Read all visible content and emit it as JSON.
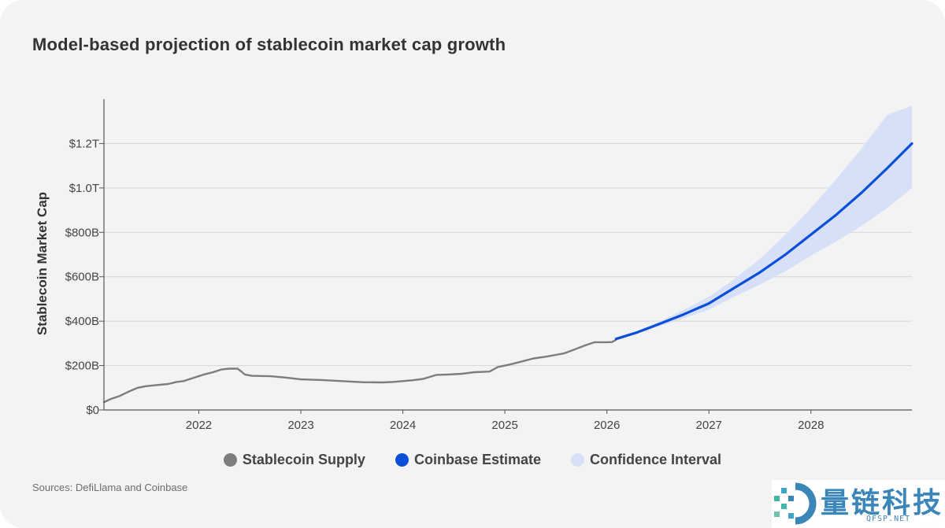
{
  "title": "Model-based projection of stablecoin market cap growth",
  "sources": "Sources: DefiLlama and Coinbase",
  "watermark": {
    "text": "量链科技",
    "sub": "QFSP.NET"
  },
  "colors": {
    "supply": "#7d7d7d",
    "estimate": "#0b4fd9",
    "confidence": "#d7e0f7",
    "grid": "#d6d6d6",
    "axis": "#555555"
  },
  "chart_data": {
    "type": "line",
    "title": "Model-based projection of stablecoin market cap growth",
    "ylabel": "Stablecoin Market Cap",
    "xlabel": "",
    "xlim": [
      2021.07,
      2028.99
    ],
    "ylim": [
      0,
      1400
    ],
    "y_ticks": [
      {
        "value": 0,
        "label": "$0"
      },
      {
        "value": 200,
        "label": "$200B"
      },
      {
        "value": 400,
        "label": "$400B"
      },
      {
        "value": 600,
        "label": "$600B"
      },
      {
        "value": 800,
        "label": "$800B"
      },
      {
        "value": 1000,
        "label": "$1.0T"
      },
      {
        "value": 1200,
        "label": "$1.2T"
      }
    ],
    "x_ticks": [
      {
        "value": 2022,
        "label": "2022"
      },
      {
        "value": 2023,
        "label": "2023"
      },
      {
        "value": 2024,
        "label": "2024"
      },
      {
        "value": 2025,
        "label": "2025"
      },
      {
        "value": 2026,
        "label": "2026"
      },
      {
        "value": 2027,
        "label": "2027"
      },
      {
        "value": 2028,
        "label": "2028"
      }
    ],
    "grid": true,
    "legend": "bottom",
    "series": [
      {
        "name": "Stablecoin Supply",
        "points": [
          [
            2021.07,
            35
          ],
          [
            2021.14,
            50
          ],
          [
            2021.22,
            62
          ],
          [
            2021.3,
            80
          ],
          [
            2021.4,
            100
          ],
          [
            2021.48,
            107
          ],
          [
            2021.58,
            112
          ],
          [
            2021.7,
            117
          ],
          [
            2021.78,
            126
          ],
          [
            2021.85,
            130
          ],
          [
            2021.95,
            145
          ],
          [
            2022.05,
            160
          ],
          [
            2022.14,
            170
          ],
          [
            2022.22,
            182
          ],
          [
            2022.3,
            186
          ],
          [
            2022.38,
            186
          ],
          [
            2022.42,
            172
          ],
          [
            2022.45,
            160
          ],
          [
            2022.52,
            154
          ],
          [
            2022.6,
            153
          ],
          [
            2022.7,
            152
          ],
          [
            2022.85,
            146
          ],
          [
            2023.0,
            138
          ],
          [
            2023.2,
            135
          ],
          [
            2023.4,
            130
          ],
          [
            2023.6,
            125
          ],
          [
            2023.8,
            124
          ],
          [
            2023.9,
            126
          ],
          [
            2024.0,
            130
          ],
          [
            2024.1,
            134
          ],
          [
            2024.2,
            140
          ],
          [
            2024.33,
            158
          ],
          [
            2024.45,
            160
          ],
          [
            2024.58,
            163
          ],
          [
            2024.7,
            170
          ],
          [
            2024.85,
            173
          ],
          [
            2024.93,
            193
          ],
          [
            2025.05,
            205
          ],
          [
            2025.18,
            220
          ],
          [
            2025.28,
            232
          ],
          [
            2025.4,
            240
          ],
          [
            2025.5,
            248
          ],
          [
            2025.58,
            255
          ],
          [
            2025.68,
            272
          ],
          [
            2025.78,
            290
          ],
          [
            2025.88,
            305
          ],
          [
            2025.93,
            305
          ],
          [
            2026.0,
            305
          ],
          [
            2026.05,
            306
          ],
          [
            2026.09,
            316
          ]
        ]
      },
      {
        "name": "Coinbase Estimate",
        "points": [
          [
            2026.09,
            320
          ],
          [
            2026.3,
            350
          ],
          [
            2026.5,
            385
          ],
          [
            2026.75,
            430
          ],
          [
            2027.0,
            480
          ],
          [
            2027.25,
            550
          ],
          [
            2027.5,
            620
          ],
          [
            2027.75,
            700
          ],
          [
            2028.0,
            790
          ],
          [
            2028.25,
            880
          ],
          [
            2028.5,
            980
          ],
          [
            2028.75,
            1090
          ],
          [
            2028.99,
            1200
          ]
        ]
      },
      {
        "name": "Confidence Interval",
        "upper": [
          [
            2026.09,
            322
          ],
          [
            2026.3,
            355
          ],
          [
            2026.5,
            395
          ],
          [
            2026.75,
            450
          ],
          [
            2027.0,
            510
          ],
          [
            2027.25,
            590
          ],
          [
            2027.5,
            680
          ],
          [
            2027.75,
            790
          ],
          [
            2028.0,
            910
          ],
          [
            2028.25,
            1040
          ],
          [
            2028.5,
            1180
          ],
          [
            2028.75,
            1330
          ],
          [
            2028.99,
            1370
          ]
        ],
        "lower": [
          [
            2026.09,
            318
          ],
          [
            2026.3,
            345
          ],
          [
            2026.5,
            375
          ],
          [
            2026.75,
            412
          ],
          [
            2027.0,
            452
          ],
          [
            2027.25,
            510
          ],
          [
            2027.5,
            565
          ],
          [
            2027.75,
            625
          ],
          [
            2028.0,
            695
          ],
          [
            2028.25,
            760
          ],
          [
            2028.5,
            830
          ],
          [
            2028.75,
            910
          ],
          [
            2028.99,
            1000
          ]
        ]
      }
    ]
  }
}
